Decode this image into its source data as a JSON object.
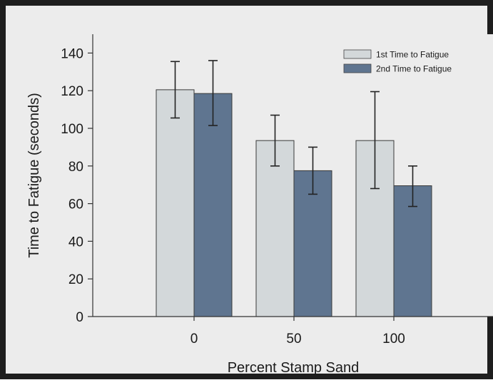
{
  "chart_data": {
    "type": "bar",
    "categories": [
      "0",
      "50",
      "100"
    ],
    "series": [
      {
        "name": "1st Time to Fatigue",
        "color": "#d3d8da",
        "values": [
          120.5,
          93.5,
          93.5
        ],
        "error_low": [
          105.5,
          80,
          68
        ],
        "error_high": [
          135.5,
          107,
          119.5
        ]
      },
      {
        "name": "2nd Time to Fatigue",
        "color": "#5f7590",
        "values": [
          118.5,
          77.5,
          69.5
        ],
        "error_low": [
          101.5,
          65,
          58.5
        ],
        "error_high": [
          136,
          90,
          80
        ]
      }
    ],
    "title": "",
    "xlabel": "Percent Stamp Sand",
    "ylabel": "Time to Fatigue (seconds)",
    "ylim": [
      0,
      150
    ],
    "yticks": [
      0,
      20,
      40,
      60,
      80,
      100,
      120,
      140
    ],
    "grid": false,
    "legend_position": "top-right"
  }
}
